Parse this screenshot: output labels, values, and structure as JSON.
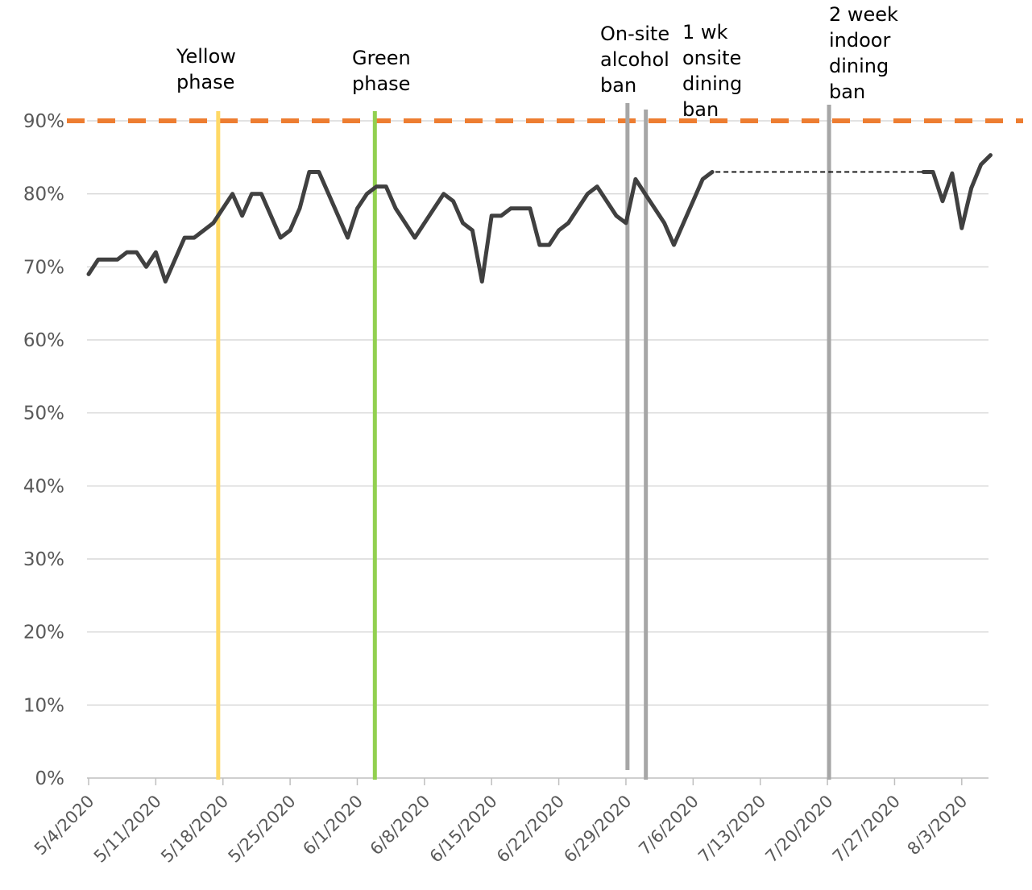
{
  "chart_data": {
    "type": "line",
    "title": "",
    "xlabel": "",
    "ylabel": "",
    "ylim": [
      0,
      90
    ],
    "yticks": [
      0,
      10,
      20,
      30,
      40,
      50,
      60,
      70,
      80,
      90
    ],
    "ytick_labels": [
      "0%",
      "10%",
      "20%",
      "30%",
      "40%",
      "50%",
      "60%",
      "70%",
      "80%",
      "90%"
    ],
    "xlim": [
      "5/4/2020",
      "8/5/2020"
    ],
    "xtick_labels": [
      "5/4/2020",
      "5/11/2020",
      "5/18/2020",
      "5/25/2020",
      "6/1/2020",
      "6/8/2020",
      "6/15/2020",
      "6/22/2020",
      "6/29/2020",
      "7/6/2020",
      "7/13/2020",
      "7/20/2020",
      "7/27/2020",
      "8/3/2020"
    ],
    "grid": true,
    "legend": "none",
    "series": [
      {
        "color": "#404040",
        "segment_1": [
          [
            "5/4/2020",
            69
          ],
          [
            "5/5/2020",
            71
          ],
          [
            "5/6/2020",
            71
          ],
          [
            "5/7/2020",
            71
          ],
          [
            "5/8/2020",
            72
          ],
          [
            "5/9/2020",
            72
          ],
          [
            "5/10/2020",
            70
          ],
          [
            "5/11/2020",
            72
          ],
          [
            "5/12/2020",
            68
          ],
          [
            "5/13/2020",
            71
          ],
          [
            "5/14/2020",
            74
          ],
          [
            "5/15/2020",
            74
          ],
          [
            "5/16/2020",
            75
          ],
          [
            "5/17/2020",
            76
          ],
          [
            "5/18/2020",
            78
          ],
          [
            "5/19/2020",
            80
          ],
          [
            "5/20/2020",
            77
          ],
          [
            "5/21/2020",
            80
          ],
          [
            "5/22/2020",
            80
          ],
          [
            "5/23/2020",
            77
          ],
          [
            "5/24/2020",
            74
          ],
          [
            "5/25/2020",
            75
          ],
          [
            "5/26/2020",
            78
          ],
          [
            "5/27/2020",
            83
          ],
          [
            "5/28/2020",
            83
          ],
          [
            "5/29/2020",
            80
          ],
          [
            "5/30/2020",
            77
          ],
          [
            "5/31/2020",
            74
          ],
          [
            "6/1/2020",
            78
          ],
          [
            "6/2/2020",
            80
          ],
          [
            "6/3/2020",
            81
          ],
          [
            "6/4/2020",
            81
          ],
          [
            "6/5/2020",
            78
          ],
          [
            "6/6/2020",
            76
          ],
          [
            "6/7/2020",
            74
          ],
          [
            "6/8/2020",
            76
          ],
          [
            "6/9/2020",
            78
          ],
          [
            "6/10/2020",
            80
          ],
          [
            "6/11/2020",
            79
          ],
          [
            "6/12/2020",
            76
          ],
          [
            "6/13/2020",
            75
          ],
          [
            "6/14/2020",
            68
          ],
          [
            "6/15/2020",
            77
          ],
          [
            "6/16/2020",
            77
          ],
          [
            "6/17/2020",
            78
          ],
          [
            "6/18/2020",
            78
          ],
          [
            "6/19/2020",
            78
          ],
          [
            "6/20/2020",
            73
          ],
          [
            "6/21/2020",
            73
          ],
          [
            "6/22/2020",
            75
          ],
          [
            "6/23/2020",
            76
          ],
          [
            "6/24/2020",
            78
          ],
          [
            "6/25/2020",
            80
          ],
          [
            "6/26/2020",
            81
          ],
          [
            "6/27/2020",
            79
          ],
          [
            "6/28/2020",
            77
          ],
          [
            "6/29/2020",
            76
          ],
          [
            "6/30/2020",
            82
          ],
          [
            "7/1/2020",
            80
          ],
          [
            "7/2/2020",
            78
          ],
          [
            "7/3/2020",
            76
          ],
          [
            "7/4/2020",
            73
          ],
          [
            "7/5/2020",
            76
          ],
          [
            "7/6/2020",
            79
          ],
          [
            "7/7/2020",
            82
          ],
          [
            "7/8/2020",
            83
          ]
        ],
        "segment_2": [
          [
            "7/30/2020",
            83
          ],
          [
            "7/31/2020",
            83
          ],
          [
            "8/1/2020",
            79
          ],
          [
            "8/2/2020",
            82.8
          ],
          [
            "8/3/2020",
            75.3
          ],
          [
            "8/4/2020",
            80.8
          ],
          [
            "8/5/2020",
            84
          ],
          [
            "8/6/2020",
            85.3
          ]
        ]
      }
    ],
    "gap_line": {
      "from": [
        "7/8/2020",
        83
      ],
      "to": [
        "7/30/2020",
        83
      ],
      "color": "#000000",
      "style": "dashed"
    },
    "target_line": {
      "value": 90,
      "color": "#ed7d31",
      "style": "dashed"
    },
    "events": [
      {
        "date": "5/17/2020",
        "color": "#ffd966",
        "label": [
          "Yellow",
          "phase"
        ]
      },
      {
        "date": "6/3/2020",
        "color": "#92d050",
        "label": [
          "Green",
          "phase"
        ]
      },
      {
        "date": "6/30/2020",
        "color": "#a6a6a6",
        "label": [
          "On-site",
          "alcohol",
          "ban"
        ]
      },
      {
        "date": "7/2/2020",
        "color": "#a6a6a6",
        "label": [
          "1 wk",
          "onsite",
          "dining",
          "ban"
        ]
      },
      {
        "date": "7/20/2020",
        "color": "#a6a6a6",
        "label": [
          "2 week",
          "indoor",
          "dining",
          "ban"
        ]
      }
    ]
  }
}
